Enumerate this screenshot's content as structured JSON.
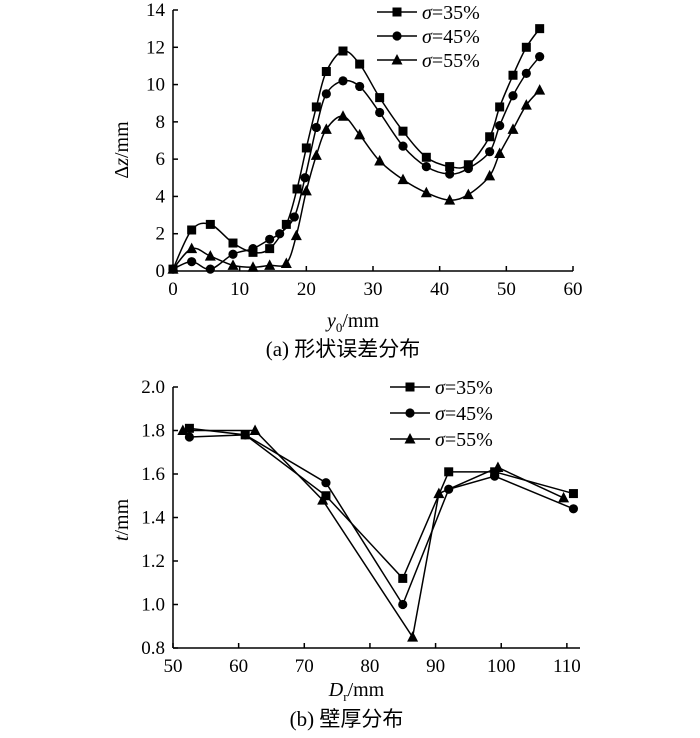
{
  "chart_data": [
    {
      "type": "line",
      "xlabel": "y0/mm",
      "ylabel": "Δz/mm",
      "caption": "(a) 形状误差分布",
      "xlim": [
        0,
        60
      ],
      "ylim": [
        0,
        14
      ],
      "xticks": [
        "0",
        "10",
        "20",
        "30",
        "40",
        "50",
        "60"
      ],
      "yticks": [
        "0",
        "2",
        "4",
        "6",
        "8",
        "10",
        "12",
        "14"
      ],
      "legend": {
        "position": "top-right"
      },
      "series": [
        {
          "name": "σ=35%",
          "marker": "square",
          "x": [
            0,
            2.8,
            5.6,
            9.0,
            12.0,
            14.5,
            17.0,
            18.6,
            20.0,
            21.5,
            23.0,
            25.5,
            28.0,
            31.0,
            34.5,
            38.0,
            41.5,
            44.3,
            47.5,
            49.0,
            51.0,
            53.0,
            55.0
          ],
          "y": [
            0.1,
            2.2,
            2.5,
            1.5,
            1.0,
            1.2,
            2.5,
            4.4,
            6.6,
            8.8,
            10.7,
            11.8,
            11.1,
            9.3,
            7.5,
            6.1,
            5.6,
            5.7,
            7.2,
            8.8,
            10.5,
            12.0,
            13.0
          ]
        },
        {
          "name": "σ=45%",
          "marker": "circle",
          "x": [
            0,
            2.8,
            5.6,
            9.0,
            12.0,
            14.5,
            16.0,
            18.2,
            19.8,
            21.5,
            23.0,
            25.5,
            28.0,
            31.0,
            34.5,
            38.0,
            41.5,
            44.3,
            47.5,
            49.0,
            51.0,
            53.0,
            55.0
          ],
          "y": [
            0.1,
            0.5,
            0.1,
            0.9,
            1.2,
            1.7,
            2.0,
            2.9,
            5.0,
            7.7,
            9.5,
            10.2,
            9.9,
            8.5,
            6.7,
            5.6,
            5.2,
            5.5,
            6.4,
            7.8,
            9.4,
            10.6,
            11.5
          ]
        },
        {
          "name": "σ=55%",
          "marker": "triangle",
          "x": [
            0,
            2.8,
            5.6,
            9.0,
            12.0,
            14.5,
            17.0,
            18.5,
            20.0,
            21.5,
            23.0,
            25.5,
            28.0,
            31.0,
            34.5,
            38.0,
            41.5,
            44.3,
            47.5,
            49.0,
            51.0,
            53.0,
            55.0
          ],
          "y": [
            0.1,
            1.2,
            0.8,
            0.3,
            0.2,
            0.3,
            0.4,
            1.9,
            4.3,
            6.2,
            7.6,
            8.3,
            7.3,
            5.9,
            4.9,
            4.2,
            3.8,
            4.1,
            5.1,
            6.3,
            7.6,
            8.9,
            9.7
          ]
        }
      ]
    },
    {
      "type": "line",
      "xlabel": "Dr/mm",
      "ylabel": "t/mm",
      "caption": "(b) 壁厚分布",
      "xlim": [
        50,
        112
      ],
      "ylim": [
        0.8,
        2.0
      ],
      "xticks": [
        "50",
        "60",
        "70",
        "80",
        "90",
        "100",
        "110"
      ],
      "yticks": [
        "0.8",
        "1.0",
        "1.2",
        "1.4",
        "1.6",
        "1.8",
        "2.0"
      ],
      "legend": {
        "position": "top-right"
      },
      "series": [
        {
          "name": "σ=35%",
          "marker": "square",
          "x": [
            52.5,
            61,
            73.3,
            85,
            92,
            99,
            111
          ],
          "y": [
            1.81,
            1.78,
            1.5,
            1.12,
            1.61,
            1.61,
            1.51
          ]
        },
        {
          "name": "σ=45%",
          "marker": "circle",
          "x": [
            52.5,
            61,
            73.3,
            85,
            92,
            99,
            111
          ],
          "y": [
            1.77,
            1.78,
            1.56,
            1.0,
            1.53,
            1.59,
            1.44
          ]
        },
        {
          "name": "σ=55%",
          "marker": "triangle",
          "x": [
            51.5,
            62.5,
            72.8,
            86.5,
            90.5,
            99.5,
            109.5
          ],
          "y": [
            1.8,
            1.8,
            1.48,
            0.85,
            1.51,
            1.63,
            1.49
          ]
        }
      ]
    }
  ]
}
